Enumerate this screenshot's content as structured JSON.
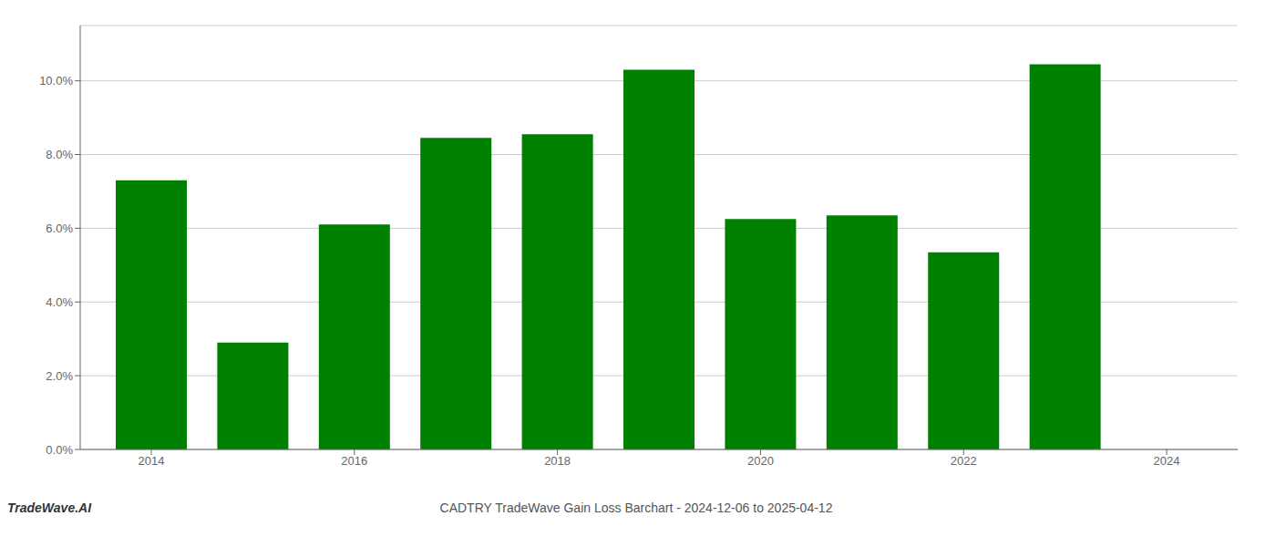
{
  "chart_data": {
    "type": "bar",
    "title": "CADTRY TradeWave Gain Loss Barchart - 2024-12-06 to 2025-04-12",
    "annotations": [
      "TradeWave.AI"
    ],
    "x": [
      2014,
      2015,
      2016,
      2017,
      2018,
      2019,
      2020,
      2021,
      2022,
      2023
    ],
    "values": [
      0.073,
      0.029,
      0.061,
      0.0845,
      0.0855,
      0.103,
      0.0625,
      0.0635,
      0.0535,
      0.1045
    ],
    "color": "#008000",
    "xlim": [
      2013.3,
      2024.7
    ],
    "xticks": [
      2014,
      2016,
      2018,
      2020,
      2022,
      2024
    ],
    "ylim": [
      0,
      0.115
    ],
    "yticks": [
      {
        "value": 0.0,
        "label": "0.0%"
      },
      {
        "value": 0.02,
        "label": "2.0%"
      },
      {
        "value": 0.04,
        "label": "4.0%"
      },
      {
        "value": 0.06,
        "label": "6.0%"
      },
      {
        "value": 0.08,
        "label": "8.0%"
      },
      {
        "value": 0.1,
        "label": "10.0%"
      }
    ],
    "grid": true
  }
}
